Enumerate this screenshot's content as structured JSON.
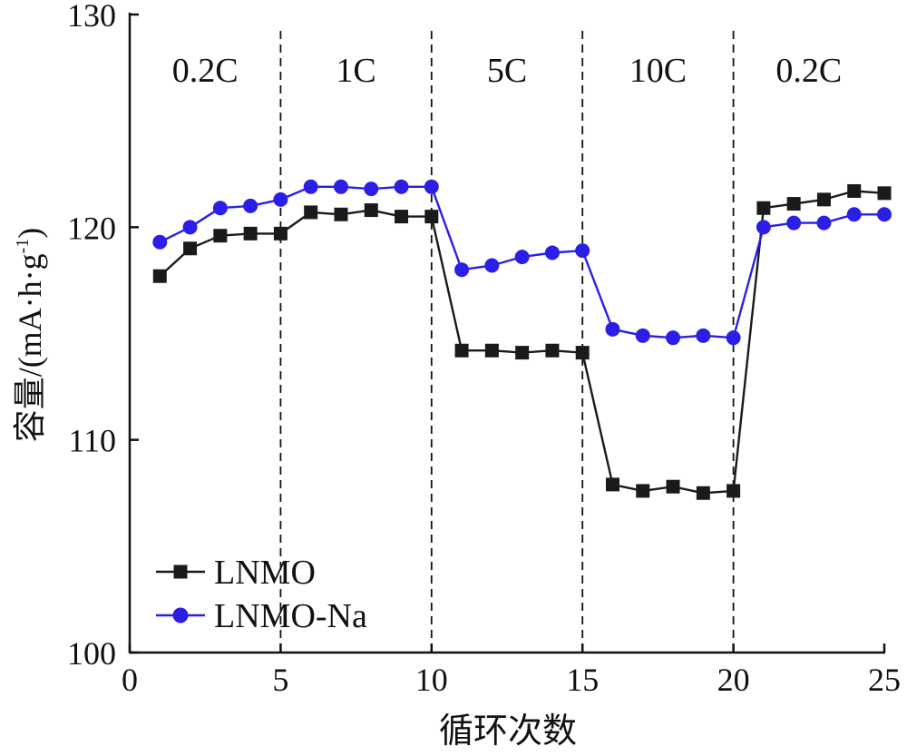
{
  "chart_data": {
    "type": "line",
    "xlabel": "循环次数",
    "ylabel": "容量/(mA·h·g⁻¹)",
    "ylabel_main": "容量/(mA·h·g",
    "ylabel_sup": "-1",
    "ylabel_close": ")",
    "xlim": [
      0,
      25
    ],
    "ylim": [
      100,
      130
    ],
    "xticks": [
      0,
      5,
      10,
      15,
      20,
      25
    ],
    "yticks": [
      100,
      110,
      120,
      130
    ],
    "xtick_labels": [
      "0",
      "5",
      "10",
      "15",
      "20",
      "25"
    ],
    "ytick_labels": [
      "100",
      "110",
      "120",
      "130"
    ],
    "grid": false,
    "legend_position": "bottom-left",
    "dividers": [
      5,
      10,
      15,
      20
    ],
    "regions": [
      {
        "label": "0.2C",
        "from": 0,
        "to": 5
      },
      {
        "label": "1C",
        "from": 5,
        "to": 10
      },
      {
        "label": "5C",
        "from": 10,
        "to": 15
      },
      {
        "label": "10C",
        "from": 15,
        "to": 20
      },
      {
        "label": "0.2C",
        "from": 20,
        "to": 25
      }
    ],
    "x": [
      1,
      2,
      3,
      4,
      5,
      6,
      7,
      8,
      9,
      10,
      11,
      12,
      13,
      14,
      15,
      16,
      17,
      18,
      19,
      20,
      21,
      22,
      23,
      24,
      25
    ],
    "series": [
      {
        "name": "LNMO",
        "color": "#1a1a1a",
        "marker": "square",
        "values": [
          117.7,
          119.0,
          119.6,
          119.7,
          119.7,
          120.7,
          120.6,
          120.8,
          120.5,
          120.5,
          114.2,
          114.2,
          114.1,
          114.2,
          114.1,
          107.9,
          107.6,
          107.8,
          107.5,
          107.6,
          120.9,
          121.1,
          121.3,
          121.7,
          121.6
        ]
      },
      {
        "name": "LNMO-Na",
        "color": "#2b1ee6",
        "marker": "circle",
        "values": [
          119.3,
          120.0,
          120.9,
          121.0,
          121.3,
          121.9,
          121.9,
          121.8,
          121.9,
          121.9,
          118.0,
          118.2,
          118.6,
          118.8,
          118.9,
          115.2,
          114.9,
          114.8,
          114.9,
          114.8,
          120.0,
          120.2,
          120.2,
          120.6,
          120.6
        ]
      }
    ]
  }
}
